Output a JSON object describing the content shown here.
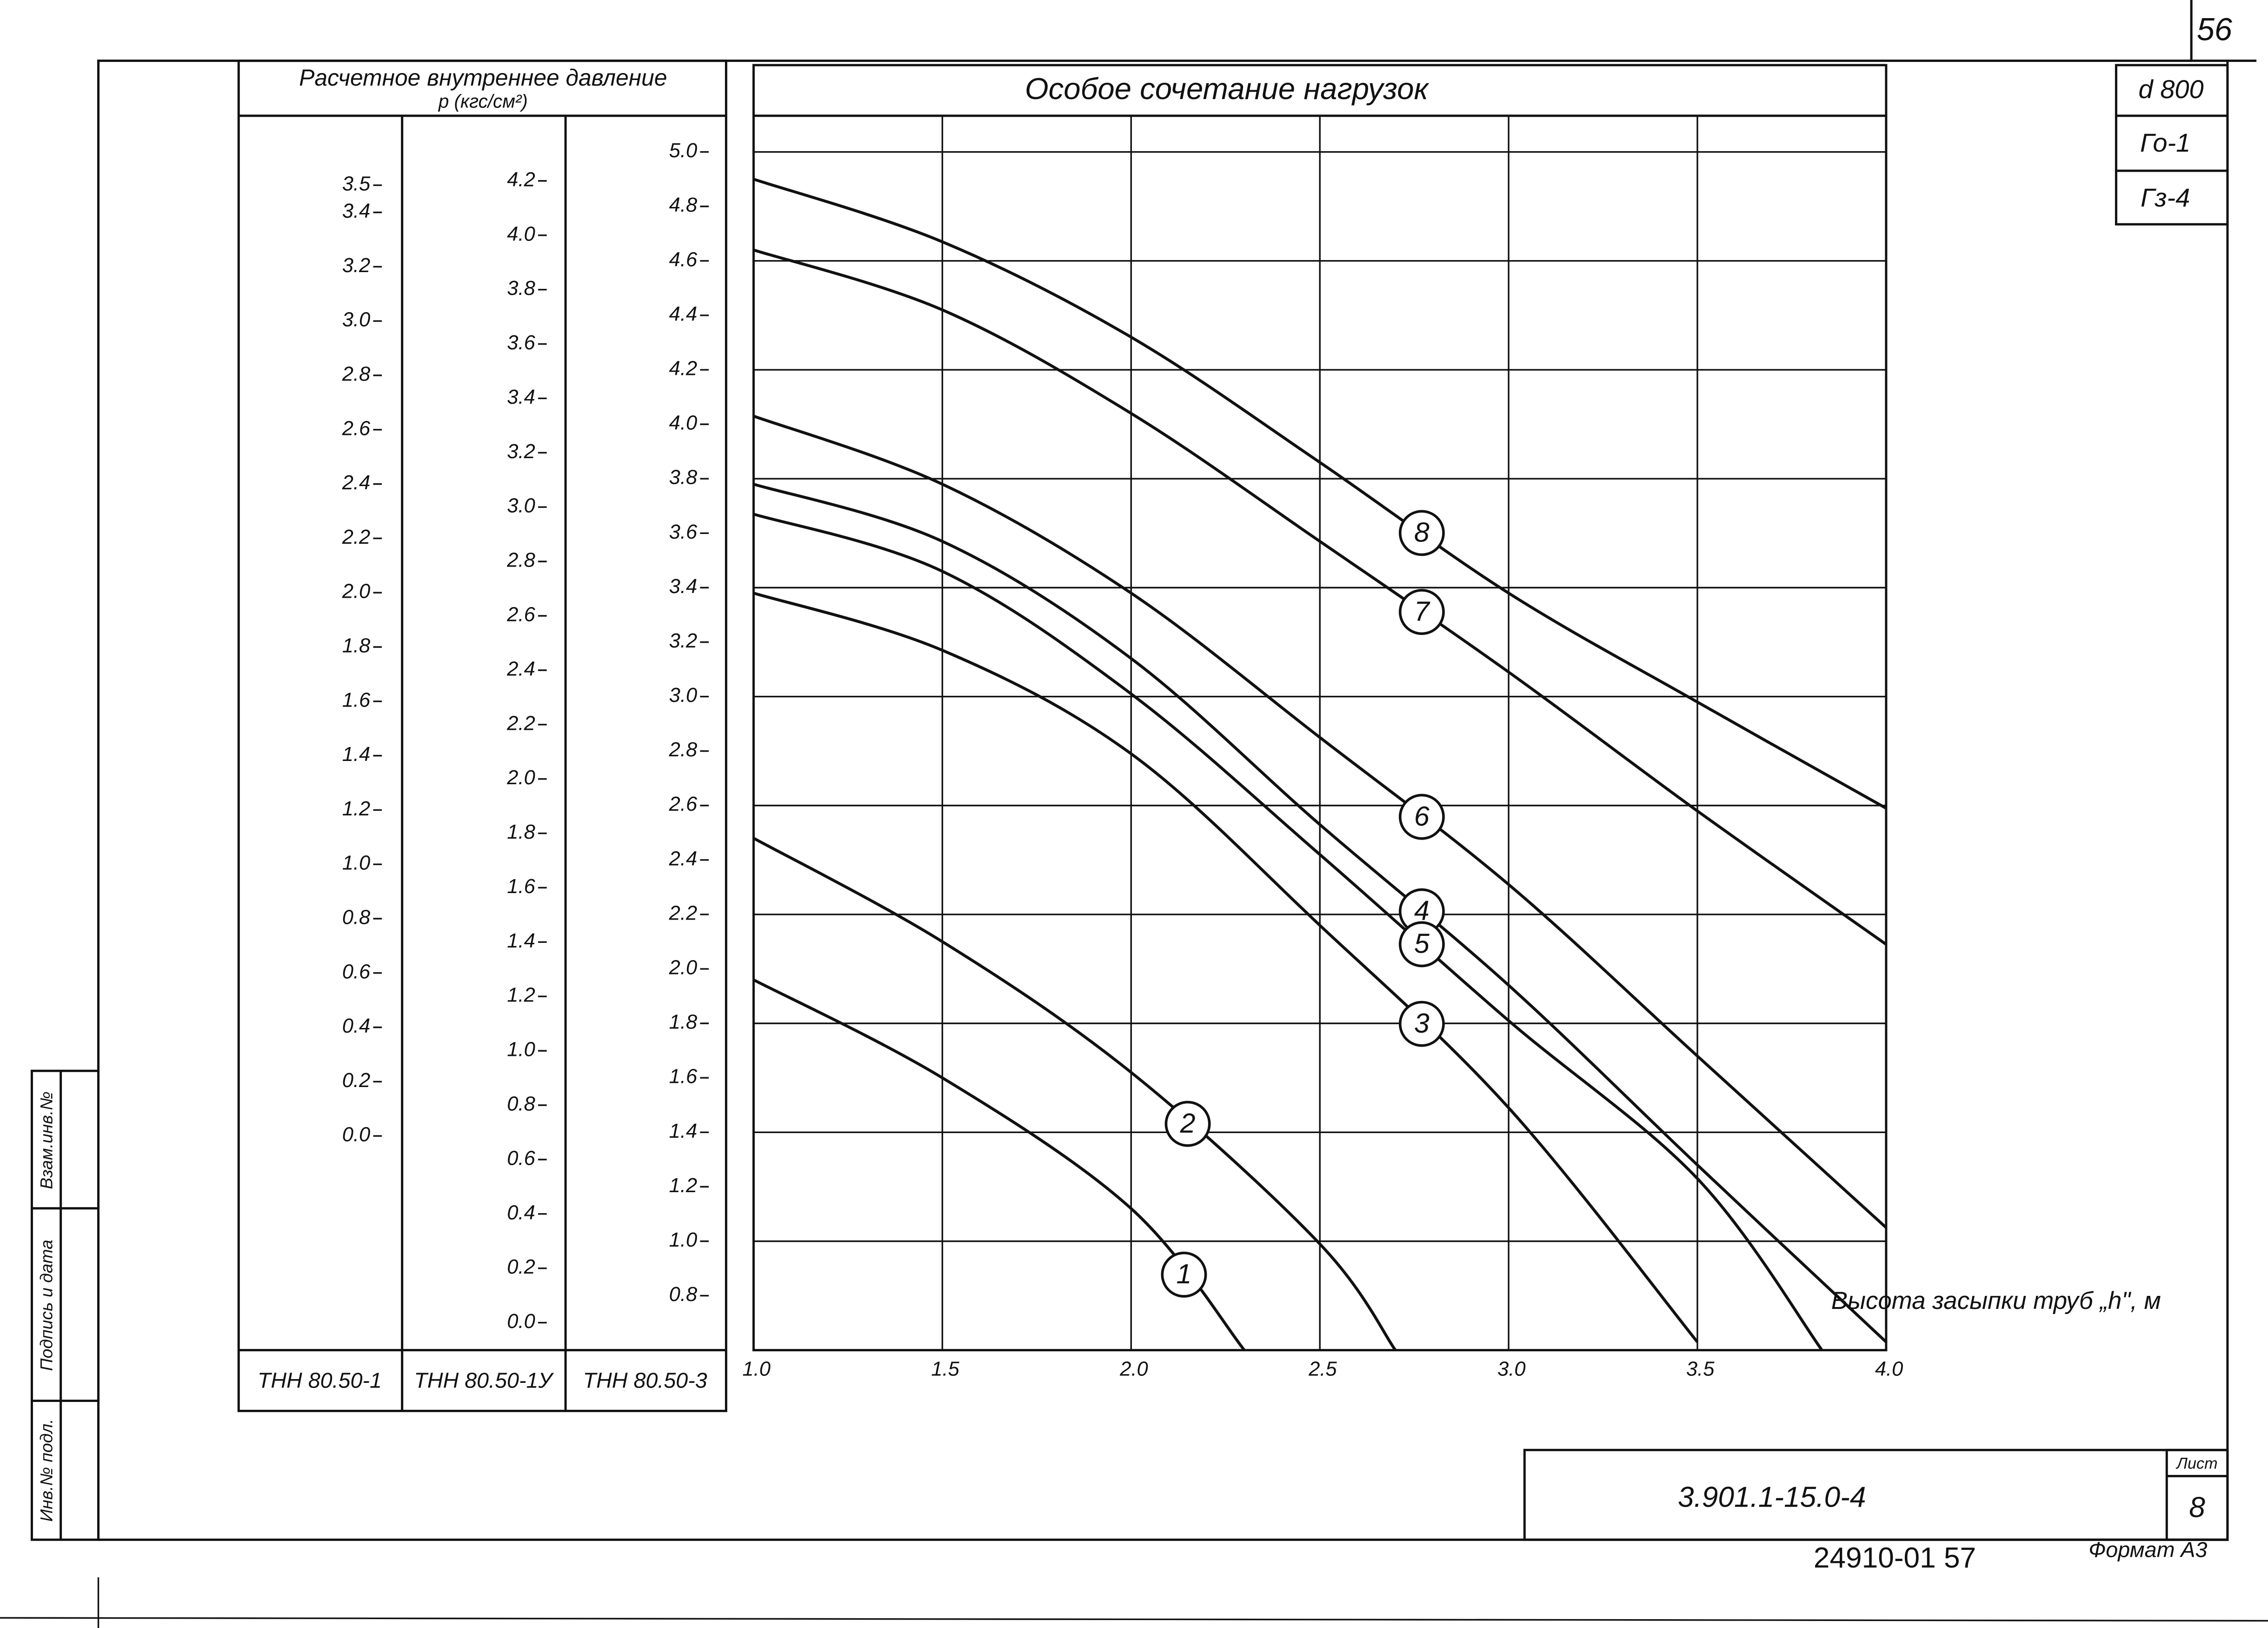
{
  "sheet": {
    "number": "56",
    "tags": [
      "d 800",
      "Го-1",
      "Гз-4"
    ],
    "code": "3.901.1-15.0-4",
    "sheet_label": "Лист",
    "sheet_number": "8",
    "archive": "24910-01 57",
    "format": "Формат А3",
    "stamps": [
      "Инв.№ подл.",
      "Подпись и дата",
      "Взам.инв.№"
    ]
  },
  "chart_data": {
    "type": "line",
    "title": "Особое сочетание нагрузок",
    "pressure_header": "Расчетное внутреннее давление",
    "pressure_unit": "р (кгс/см²)",
    "xlabel": "Высота засыпки труб „h\", м",
    "xlim": [
      1,
      4
    ],
    "xticks": [
      {
        "value": 1,
        "label": "1.0"
      },
      1.5,
      {
        "value": 2,
        "label": "2.0"
      },
      2.5,
      {
        "value": 3,
        "label": "3.0"
      },
      3.5,
      {
        "value": 4,
        "label": "4.0"
      }
    ],
    "ylim": [
      0.6,
      5
    ],
    "yticks": [
      {
        "value": 5,
        "label": "5.0"
      },
      4.8,
      4.6,
      4.4,
      4.2,
      {
        "value": 4,
        "label": "4.0"
      },
      3.8,
      3.6,
      3.4,
      3.2,
      {
        "value": 3,
        "label": "3.0"
      },
      2.8,
      2.6,
      2.4,
      2.2,
      {
        "value": 2,
        "label": "2.0"
      },
      1.8,
      1.6,
      1.4,
      1.2,
      {
        "value": 1,
        "label": "1.0"
      },
      0.8
    ],
    "ylabel": "ТНН 80.50-3",
    "grid": true,
    "extra_scales": [
      {
        "label": "ТНН 80.50-1",
        "ylim": [
          0,
          3.5
        ],
        "yticks": [
          3.5,
          3.4,
          3.2,
          {
            "value": 3,
            "label": "3.0"
          },
          2.8,
          2.6,
          2.4,
          2.2,
          {
            "value": 2,
            "label": "2.0"
          },
          1.8,
          1.6,
          1.4,
          1.2,
          {
            "value": 1,
            "label": "1.0"
          },
          0.8,
          0.6,
          0.4,
          0.2,
          {
            "value": 0,
            "label": "0.0"
          }
        ]
      },
      {
        "label": "ТНН 80.50-1У",
        "ylim": [
          0,
          4.2
        ],
        "yticks": [
          4.2,
          {
            "value": 4,
            "label": "4.0"
          },
          3.8,
          3.6,
          3.4,
          3.2,
          {
            "value": 3,
            "label": "3.0"
          },
          2.8,
          2.6,
          2.4,
          2.2,
          {
            "value": 2,
            "label": "2.0"
          },
          1.8,
          1.6,
          1.4,
          1.2,
          {
            "value": 1,
            "label": "1.0"
          },
          0.8,
          0.6,
          0.4,
          0.2,
          {
            "value": 0,
            "label": "0.0"
          }
        ]
      }
    ],
    "series": [
      {
        "name": "1",
        "color": "#111111",
        "x": [
          1,
          1.5,
          2,
          2.3
        ],
        "values": [
          1.96,
          1.6,
          1.12,
          0.6
        ]
      },
      {
        "name": "2",
        "color": "#111111",
        "x": [
          1,
          1.5,
          2,
          2.5,
          2.7
        ],
        "values": [
          2.48,
          2.1,
          1.62,
          0.99,
          0.6
        ]
      },
      {
        "name": "3",
        "color": "#111111",
        "x": [
          1,
          1.5,
          2,
          2.5,
          3,
          3.5
        ],
        "values": [
          3.38,
          3.17,
          2.79,
          2.16,
          1.49,
          0.63
        ]
      },
      {
        "name": "4",
        "color": "#111111",
        "x": [
          1,
          1.5,
          2,
          2.5,
          3,
          3.5,
          4
        ],
        "values": [
          3.78,
          3.57,
          3.14,
          2.53,
          1.94,
          1.28,
          0.63
        ]
      },
      {
        "name": "5",
        "color": "#111111",
        "x": [
          1,
          1.5,
          2,
          2.5,
          3,
          3.5,
          3.83
        ],
        "values": [
          3.67,
          3.46,
          3.01,
          2.42,
          1.81,
          1.23,
          0.6
        ]
      },
      {
        "name": "6",
        "color": "#111111",
        "x": [
          1,
          1.5,
          2,
          2.5,
          3,
          3.5,
          4
        ],
        "values": [
          4.03,
          3.78,
          3.38,
          2.85,
          2.31,
          1.68,
          1.05
        ]
      },
      {
        "name": "7",
        "color": "#111111",
        "x": [
          1,
          1.5,
          2,
          2.5,
          3,
          3.5,
          4
        ],
        "values": [
          4.64,
          4.42,
          4.04,
          3.57,
          3.09,
          2.58,
          2.09
        ]
      },
      {
        "name": "8",
        "color": "#111111",
        "x": [
          1,
          1.5,
          2,
          2.5,
          3,
          3.5,
          4
        ],
        "values": [
          4.9,
          4.67,
          4.32,
          3.86,
          3.38,
          2.98,
          2.59
        ]
      }
    ]
  }
}
